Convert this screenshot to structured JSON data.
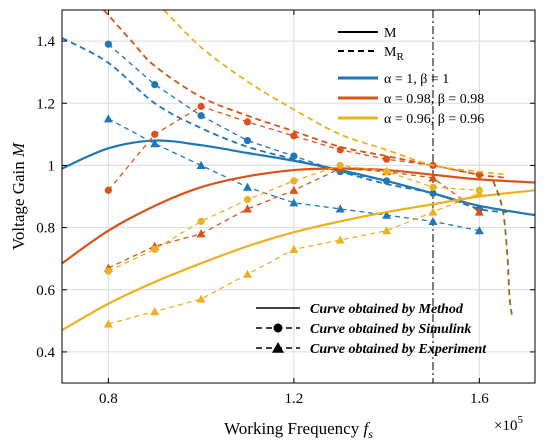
{
  "chart_data": {
    "type": "line",
    "xlabel": "Working Frequency",
    "xlabel_symbol": "f",
    "xlabel_sub": "s",
    "ylabel": "Voltage Gain",
    "ylabel_symbol": "M",
    "x_multiplier": "×10",
    "x_multiplier_exp": "5",
    "xlim": [
      0.7,
      1.72
    ],
    "ylim": [
      0.3,
      1.5
    ],
    "xticks": [
      0.8,
      1.2,
      1.6
    ],
    "xtick_labels": [
      "0.8",
      "1.2",
      "1.6"
    ],
    "yticks": [
      0.4,
      0.6,
      0.8,
      1.0,
      1.2,
      1.4
    ],
    "ytick_labels": [
      "0.4",
      "0.6",
      "0.8",
      "1",
      "1.2",
      "1.4"
    ],
    "grid": true,
    "vline_x": 1.5,
    "legend_style": [
      {
        "label": "M",
        "sub": "",
        "style": "solid"
      },
      {
        "label": "M",
        "sub": "R",
        "style": "dashed"
      }
    ],
    "legend_colors": [
      {
        "label": "α = 1, β = 1",
        "color": "#1f77b4"
      },
      {
        "label": "α = 0.98, β = 0.98",
        "color": "#d95319"
      },
      {
        "label": "α = 0.96, β = 0.96",
        "color": "#edb120"
      }
    ],
    "legend_methods": [
      {
        "label": "Curve obtained by Method",
        "marker": "none"
      },
      {
        "label": "Curve obtained by Simulink",
        "marker": "circle"
      },
      {
        "label": "Curve obtained by Experiment",
        "marker": "triangle"
      }
    ],
    "series": [
      {
        "color": "#1f77b4",
        "method": [
          [
            0.7,
            0.99
          ],
          [
            0.8,
            1.055
          ],
          [
            0.9,
            1.08
          ],
          [
            1.0,
            1.065
          ],
          [
            1.1,
            1.04
          ],
          [
            1.2,
            1.015
          ],
          [
            1.3,
            0.985
          ],
          [
            1.4,
            0.95
          ],
          [
            1.5,
            0.91
          ],
          [
            1.6,
            0.87
          ],
          [
            1.72,
            0.84
          ]
        ],
        "MR": [
          [
            0.7,
            1.41
          ],
          [
            0.8,
            1.33
          ],
          [
            0.9,
            1.2
          ],
          [
            1.0,
            1.12
          ],
          [
            1.1,
            1.06
          ],
          [
            1.2,
            1.02
          ],
          [
            1.3,
            0.98
          ],
          [
            1.4,
            0.94
          ],
          [
            1.5,
            0.91
          ],
          [
            1.6,
            0.86
          ],
          [
            1.66,
            0.85
          ]
        ],
        "simulink": [
          [
            0.8,
            1.39
          ],
          [
            0.9,
            1.26
          ],
          [
            1.0,
            1.16
          ],
          [
            1.1,
            1.08
          ],
          [
            1.2,
            1.03
          ],
          [
            1.3,
            0.98
          ],
          [
            1.4,
            0.95
          ],
          [
            1.5,
            0.91
          ],
          [
            1.6,
            0.86
          ]
        ],
        "experiment": [
          [
            0.8,
            1.15
          ],
          [
            0.9,
            1.07
          ],
          [
            1.0,
            1.0
          ],
          [
            1.1,
            0.93
          ],
          [
            1.2,
            0.88
          ],
          [
            1.3,
            0.86
          ],
          [
            1.4,
            0.84
          ],
          [
            1.5,
            0.82
          ],
          [
            1.6,
            0.79
          ]
        ]
      },
      {
        "color": "#d95319",
        "method": [
          [
            0.7,
            0.685
          ],
          [
            0.8,
            0.79
          ],
          [
            0.9,
            0.87
          ],
          [
            1.0,
            0.93
          ],
          [
            1.1,
            0.965
          ],
          [
            1.2,
            0.985
          ],
          [
            1.3,
            0.99
          ],
          [
            1.4,
            0.985
          ],
          [
            1.5,
            0.97
          ],
          [
            1.6,
            0.955
          ],
          [
            1.72,
            0.945
          ]
        ],
        "MR": [
          [
            0.79,
            1.5
          ],
          [
            0.85,
            1.4
          ],
          [
            0.9,
            1.32
          ],
          [
            1.0,
            1.22
          ],
          [
            1.1,
            1.16
          ],
          [
            1.2,
            1.11
          ],
          [
            1.3,
            1.06
          ],
          [
            1.4,
            1.03
          ],
          [
            1.5,
            1.0
          ],
          [
            1.6,
            0.97
          ],
          [
            1.66,
            0.96
          ]
        ],
        "simulink": [
          [
            0.8,
            0.92
          ],
          [
            0.9,
            1.1
          ],
          [
            1.0,
            1.19
          ],
          [
            1.1,
            1.14
          ],
          [
            1.2,
            1.095
          ],
          [
            1.3,
            1.05
          ],
          [
            1.4,
            1.02
          ],
          [
            1.5,
            1.0
          ],
          [
            1.6,
            0.97
          ]
        ],
        "experiment": [
          [
            0.8,
            0.67
          ],
          [
            0.9,
            0.74
          ],
          [
            1.0,
            0.78
          ],
          [
            1.1,
            0.86
          ],
          [
            1.2,
            0.92
          ],
          [
            1.3,
            0.99
          ],
          [
            1.4,
            0.98
          ],
          [
            1.5,
            0.96
          ],
          [
            1.6,
            0.85
          ]
        ]
      },
      {
        "color": "#edb120",
        "method": [
          [
            0.7,
            0.47
          ],
          [
            0.8,
            0.555
          ],
          [
            0.9,
            0.625
          ],
          [
            1.0,
            0.685
          ],
          [
            1.1,
            0.74
          ],
          [
            1.2,
            0.785
          ],
          [
            1.3,
            0.82
          ],
          [
            1.4,
            0.85
          ],
          [
            1.5,
            0.875
          ],
          [
            1.6,
            0.9
          ],
          [
            1.72,
            0.92
          ]
        ],
        "MR": [
          [
            0.92,
            1.5
          ],
          [
            1.0,
            1.38
          ],
          [
            1.1,
            1.27
          ],
          [
            1.2,
            1.18
          ],
          [
            1.3,
            1.1
          ],
          [
            1.4,
            1.05
          ],
          [
            1.5,
            1.0
          ],
          [
            1.6,
            0.98
          ],
          [
            1.66,
            0.97
          ]
        ],
        "simulink": [
          [
            0.8,
            0.66
          ],
          [
            0.9,
            0.73
          ],
          [
            1.0,
            0.82
          ],
          [
            1.1,
            0.89
          ],
          [
            1.2,
            0.95
          ],
          [
            1.3,
            1.0
          ],
          [
            1.4,
            0.98
          ],
          [
            1.5,
            0.93
          ],
          [
            1.6,
            0.92
          ]
        ],
        "experiment": [
          [
            0.8,
            0.49
          ],
          [
            0.9,
            0.53
          ],
          [
            1.0,
            0.57
          ],
          [
            1.1,
            0.65
          ],
          [
            1.2,
            0.73
          ],
          [
            1.3,
            0.76
          ],
          [
            1.4,
            0.79
          ],
          [
            1.5,
            0.85
          ],
          [
            1.6,
            0.91
          ]
        ]
      }
    ],
    "drop_curve": {
      "color": "#8a6d1a",
      "points": [
        [
          1.63,
          0.95
        ],
        [
          1.65,
          0.86
        ],
        [
          1.66,
          0.72
        ],
        [
          1.665,
          0.58
        ],
        [
          1.67,
          0.52
        ]
      ]
    }
  }
}
